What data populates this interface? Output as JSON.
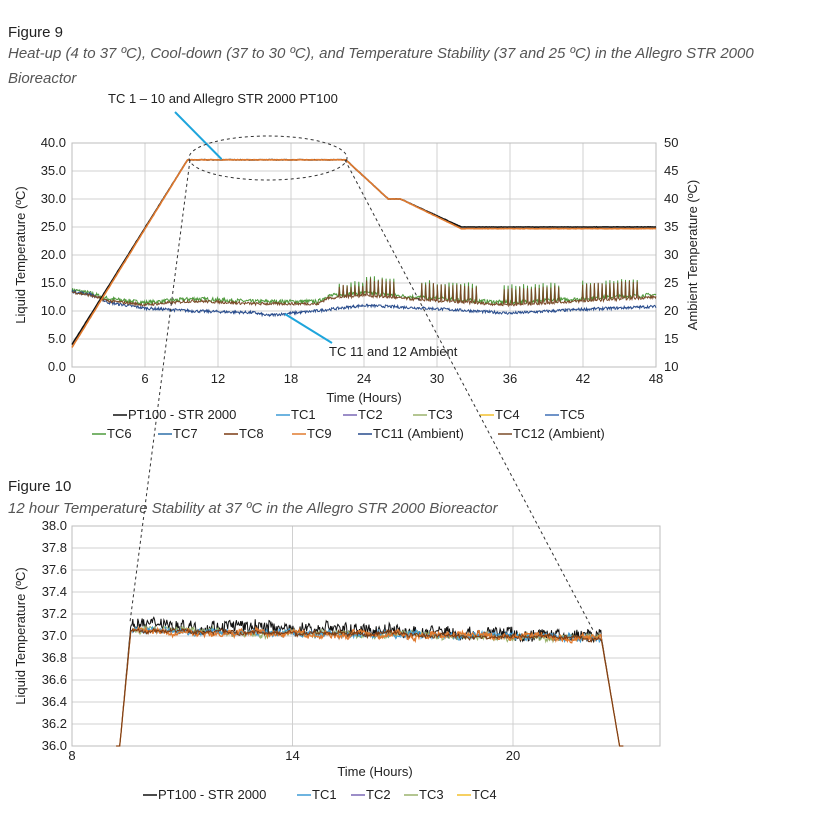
{
  "colors": {
    "PT100": "#111111",
    "TC1": "#3d9bd6",
    "TC2": "#7b68b5",
    "TC3": "#9ab36e",
    "TC4": "#f2c12e",
    "TC5": "#3f6fb5",
    "TC6": "#4e9a3c",
    "TC7": "#2e6fa8",
    "TC8": "#7a3b12",
    "TC9": "#e07a2f",
    "TC11": "#274b8c",
    "TC12": "#7a4a28",
    "callout": "#1ea5dc"
  },
  "chart_data": [
    {
      "type": "line",
      "figure_label": "Figure 9",
      "title": "Heat-up (4 to 37 ºC), Cool-down (37 to 30 ºC), and Temperature Stability (37 and 25 ºC) in the Allegro STR 2000 Bioreactor",
      "xlabel": "Time (Hours)",
      "ylabel": "Liquid Temperature (ºC)",
      "y2label": "Ambient Temperature (ºC)",
      "xlim": [
        0,
        48
      ],
      "ylim": [
        0,
        40
      ],
      "y2lim": [
        10,
        50
      ],
      "xticks": [
        "0",
        "6",
        "12",
        "18",
        "24",
        "30",
        "36",
        "42",
        "48"
      ],
      "yticks": [
        "0.0",
        "5.0",
        "10.0",
        "15.0",
        "20.0",
        "25.0",
        "30.0",
        "35.0",
        "40.0"
      ],
      "y2ticks": [
        "10",
        "15",
        "20",
        "25",
        "30",
        "35",
        "40",
        "45",
        "50"
      ],
      "grid": true,
      "legend_position": "bottom",
      "annotations": [
        "TC 1 – 10 and Allegro STR 2000 PT100",
        "TC 11 and 12 Ambient"
      ],
      "legend": [
        "PT100 - STR 2000",
        "TC1",
        "TC2",
        "TC3",
        "TC4",
        "TC5",
        "TC6",
        "TC7",
        "TC8",
        "TC9",
        "TC11 (Ambient)",
        "TC12 (Ambient)"
      ],
      "series": [
        {
          "name": "PT100 - STR 2000",
          "axis": "left",
          "x": [
            0,
            9.5,
            22.5,
            26,
            27,
            32,
            48
          ],
          "y": [
            4,
            37,
            37,
            30,
            30,
            25,
            25
          ]
        },
        {
          "name": "TC1-TC10",
          "axis": "left",
          "x": [
            0,
            9.5,
            22.5,
            26,
            27,
            32,
            48
          ],
          "y": [
            3.5,
            37,
            37,
            30,
            30,
            24.7,
            24.7
          ]
        },
        {
          "name": "TC11 (Ambient)",
          "axis": "right",
          "x": [
            0,
            1.5,
            3,
            6,
            10,
            15,
            16,
            20,
            24,
            30,
            36,
            42,
            48
          ],
          "y": [
            23.5,
            23,
            21.5,
            20.5,
            20,
            19.7,
            19.2,
            20,
            21,
            20.4,
            19.6,
            20.3,
            20.8
          ]
        },
        {
          "name": "TC12 (Ambient)",
          "axis": "right",
          "x": [
            0,
            1.5,
            3,
            6,
            10,
            15,
            20,
            21,
            24,
            30,
            36,
            42,
            48
          ],
          "y": [
            23.8,
            23.2,
            22.2,
            21.5,
            22.2,
            21.7,
            21.7,
            23,
            23.5,
            22.5,
            21.8,
            22.5,
            23.2
          ]
        }
      ]
    },
    {
      "type": "line",
      "figure_label": "Figure 10",
      "title": "12 hour Temperature Stability at 37 ºC in the Allegro STR 2000 Bioreactor",
      "xlabel": "Time (Hours)",
      "ylabel": "Liquid Temperature (ºC)",
      "xlim": [
        8,
        24
      ],
      "ylim": [
        36.0,
        38.0
      ],
      "xticks": [
        "8",
        "14",
        "20"
      ],
      "yticks": [
        "36.0",
        "36.2",
        "36.4",
        "36.6",
        "36.8",
        "37.0",
        "37.2",
        "37.4",
        "37.6",
        "37.8",
        "38.0"
      ],
      "grid": true,
      "legend_position": "bottom",
      "legend": [
        "PT100 - STR 2000",
        "TC1",
        "TC2",
        "TC3",
        "TC4"
      ],
      "series": [
        {
          "name": "PT100 - STR 2000",
          "x": [
            9.3,
            9.6,
            22.4,
            22.9
          ],
          "y": [
            36.0,
            37.1,
            37.0,
            36.0
          ]
        },
        {
          "name": "TC1-TC9",
          "x": [
            9.3,
            9.6,
            22.4,
            22.9
          ],
          "y": [
            36.0,
            37.05,
            36.98,
            36.0
          ]
        }
      ]
    }
  ]
}
